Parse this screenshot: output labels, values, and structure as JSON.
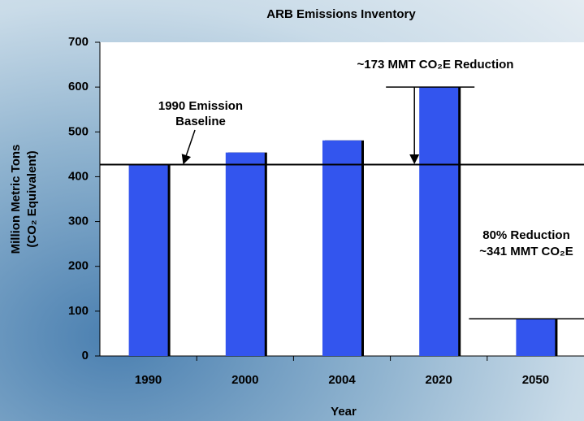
{
  "chart_data": {
    "type": "bar",
    "title": "ARB Emissions Inventory",
    "categories": [
      "1990",
      "2000",
      "2004",
      "2020",
      "2050"
    ],
    "values": [
      427,
      454,
      481,
      600,
      83
    ],
    "color": "#3355ee",
    "ylim": [
      0,
      700
    ],
    "yticks": [
      0,
      100,
      200,
      300,
      400,
      500,
      600,
      700
    ],
    "x_label": "Year",
    "y_label": [
      "Million Metric Tons",
      "(CO₂ Equivalent)"
    ],
    "annotations": {
      "baseline": [
        "1990 Emission",
        "Baseline"
      ],
      "reduction_2020": "~173 MMT CO₂E Reduction",
      "reduction_2050": [
        "80% Reduction",
        "~341 MMT CO₂E"
      ]
    }
  }
}
